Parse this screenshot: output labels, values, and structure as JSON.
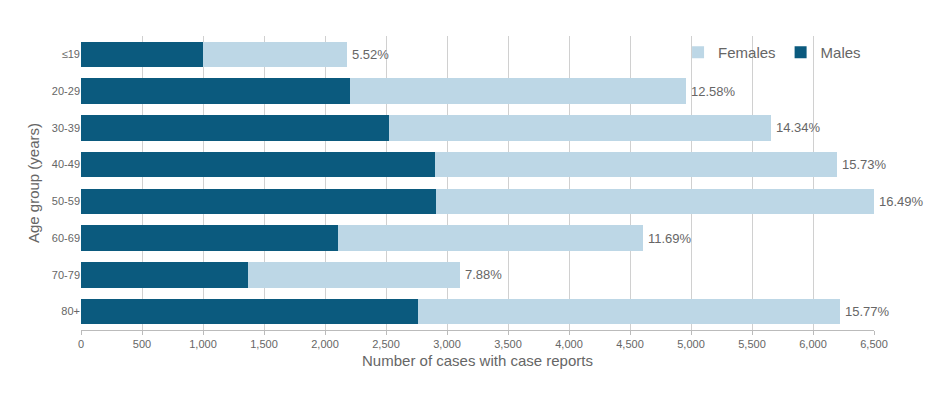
{
  "chart_data": {
    "type": "bar",
    "orientation": "horizontal",
    "stacked": true,
    "grid": true,
    "legend": "top right",
    "x_label": "Number of cases with case reports",
    "y_label": "Age group (years)",
    "categories": [
      "≤19",
      "20-29",
      "30-39",
      "40-49",
      "50-59",
      "60-69",
      "70-79",
      "80+"
    ],
    "series": [
      {
        "name": "Males",
        "color": "#0b5a7e",
        "values": [
          1000,
          2205,
          2525,
          2900,
          2910,
          2105,
          1370,
          2760
        ]
      },
      {
        "name": "Females",
        "color": "#bdd7e6",
        "values": [
          1180,
          2755,
          3130,
          3295,
          3590,
          2500,
          1735,
          3460
        ]
      }
    ],
    "shares": [
      5.52,
      12.58,
      14.34,
      15.73,
      16.49,
      11.69,
      7.88,
      15.77
    ],
    "share_labels": [
      "5.52%",
      "12.58%",
      "14.34%",
      "15.73%",
      "16.49%",
      "11.69%",
      "7.88%",
      "15.77%"
    ],
    "xlim": [
      0,
      6500
    ],
    "xticks": [
      0,
      500,
      {
        "value": 1000,
        "label": "1,000"
      },
      {
        "value": 1500,
        "label": "1,500"
      },
      {
        "value": 2000,
        "label": "2,000"
      },
      {
        "value": 2500,
        "label": "2,500"
      },
      {
        "value": 3000,
        "label": "3,000"
      },
      {
        "value": 3500,
        "label": "3,500"
      },
      {
        "value": 4000,
        "label": "4,000"
      },
      {
        "value": 4500,
        "label": "4,500"
      },
      {
        "value": 5000,
        "label": "5,000"
      },
      {
        "value": 5500,
        "label": "5,500"
      },
      {
        "value": 6000,
        "label": "6,000"
      },
      {
        "value": 6500,
        "label": "6,500"
      }
    ]
  }
}
